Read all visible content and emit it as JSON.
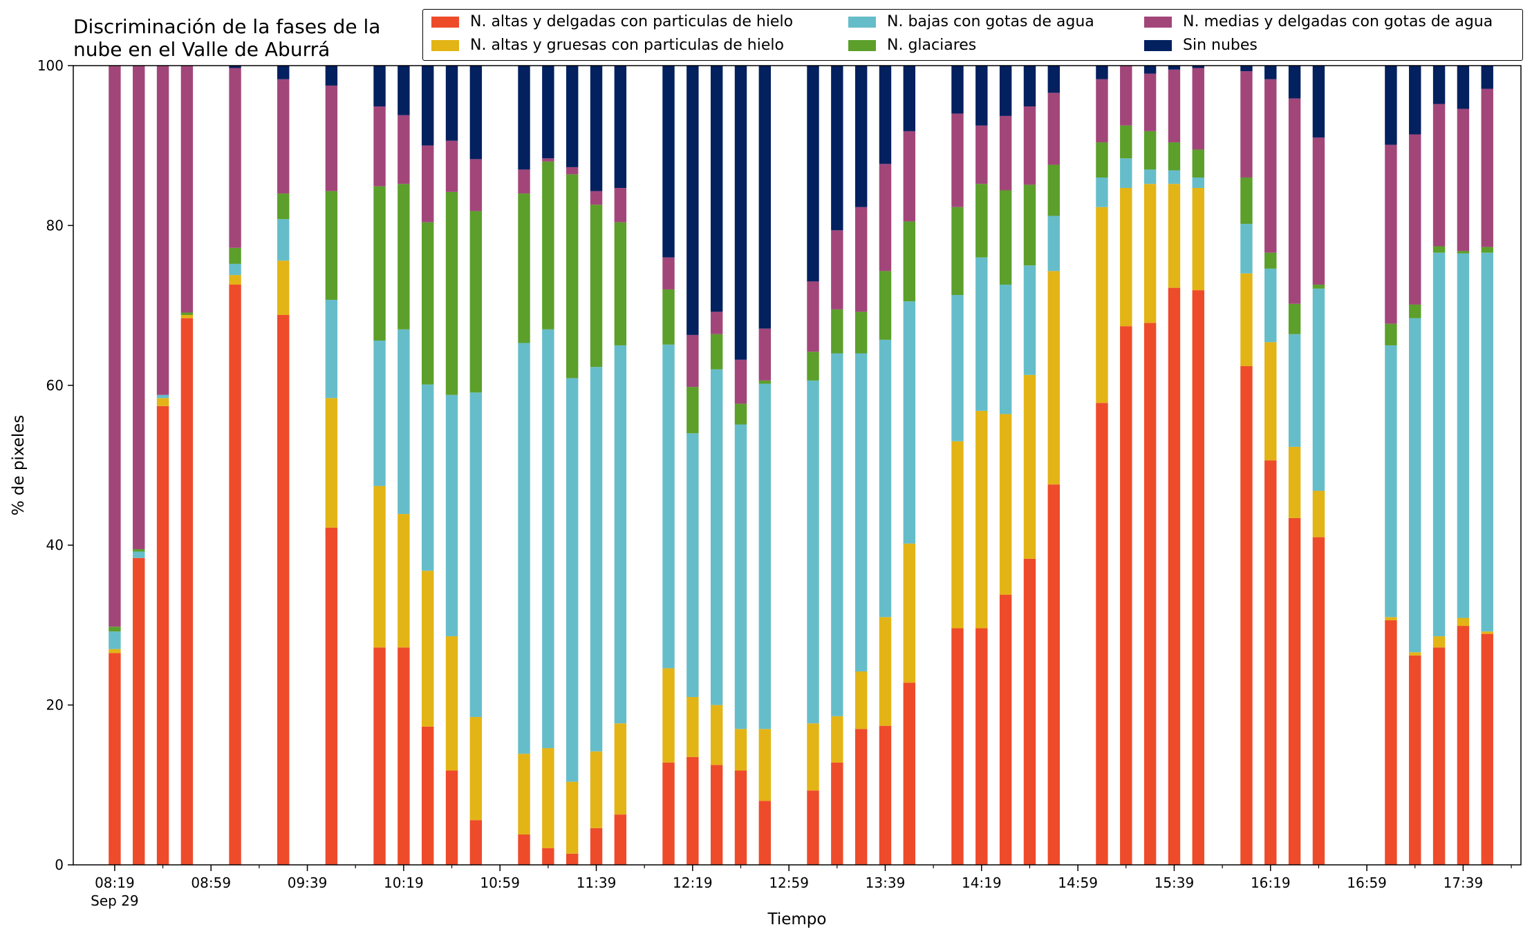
{
  "colors": {
    "thin_ice": "#ee4b2b",
    "thick_ice": "#e3b416",
    "low_water": "#66bdca",
    "glacier": "#5c9f2b",
    "mid_water": "#a2467a",
    "no_cloud": "#03205f"
  },
  "chart_data": {
    "type": "bar",
    "stacked": true,
    "title": "Discriminación de la fases de la\nnube en el Valle de Aburrá",
    "xlabel": "Tiempo",
    "ylabel": "% de pixeles",
    "ylim": [
      0,
      100
    ],
    "yticks": [
      "0",
      "20",
      "40",
      "60",
      "80",
      "100"
    ],
    "xlim_minutes": [
      8.03,
      18.05
    ],
    "xtick_labels": [
      {
        "time": "08:19",
        "sub": "Sep 29"
      },
      {
        "time": "08:59",
        "sub": ""
      },
      {
        "time": "09:39",
        "sub": ""
      },
      {
        "time": "10:19",
        "sub": ""
      },
      {
        "time": "10:59",
        "sub": ""
      },
      {
        "time": "11:39",
        "sub": ""
      },
      {
        "time": "12:19",
        "sub": ""
      },
      {
        "time": "12:59",
        "sub": ""
      },
      {
        "time": "13:39",
        "sub": ""
      },
      {
        "time": "14:19",
        "sub": ""
      },
      {
        "time": "14:59",
        "sub": ""
      },
      {
        "time": "15:39",
        "sub": ""
      },
      {
        "time": "16:19",
        "sub": ""
      },
      {
        "time": "16:59",
        "sub": ""
      },
      {
        "time": "17:39",
        "sub": ""
      }
    ],
    "legend_position": "top-right",
    "series": [
      {
        "name": "N. altas y delgadas con particulas de hielo",
        "key": "thin_ice"
      },
      {
        "name": "N. altas y gruesas con particulas de hielo",
        "key": "thick_ice"
      },
      {
        "name": "N. bajas con gotas de agua",
        "key": "low_water"
      },
      {
        "name": "N. glaciares",
        "key": "glacier"
      },
      {
        "name": "N. medias y delgadas con gotas de agua",
        "key": "mid_water"
      },
      {
        "name": "Sin nubes",
        "key": "no_cloud"
      }
    ],
    "x": [
      "08:19",
      "08:29",
      "08:39",
      "08:49",
      "09:09",
      "09:29",
      "09:49",
      "10:09",
      "10:19",
      "10:29",
      "10:39",
      "10:49",
      "11:09",
      "11:19",
      "11:29",
      "11:39",
      "11:49",
      "12:09",
      "12:19",
      "12:29",
      "12:39",
      "12:49",
      "13:09",
      "13:19",
      "13:29",
      "13:39",
      "13:49",
      "14:09",
      "14:19",
      "14:29",
      "14:39",
      "14:49",
      "15:09",
      "15:19",
      "15:29",
      "15:39",
      "15:49",
      "16:09",
      "16:19",
      "16:29",
      "16:39",
      "17:09",
      "17:19",
      "17:29",
      "17:39",
      "17:49"
    ],
    "values": [
      [
        26.5,
        0.5,
        2.2,
        0.6,
        70.2,
        0
      ],
      [
        38.4,
        0,
        0.8,
        0.3,
        60.5,
        0
      ],
      [
        57.4,
        1.0,
        0.4,
        0,
        41.2,
        0
      ],
      [
        68.4,
        0.4,
        0,
        0.3,
        30.9,
        0
      ],
      [
        72.6,
        1.2,
        1.4,
        2.0,
        22.5,
        0.3
      ],
      [
        68.8,
        6.8,
        5.2,
        3.2,
        14.3,
        1.7
      ],
      [
        42.2,
        16.2,
        12.3,
        13.6,
        13.2,
        2.5
      ],
      [
        27.2,
        20.2,
        18.2,
        19.3,
        10.0,
        5.1
      ],
      [
        27.2,
        16.7,
        23.1,
        18.2,
        8.6,
        6.2
      ],
      [
        17.3,
        19.5,
        23.3,
        20.3,
        9.6,
        10.0
      ],
      [
        11.8,
        16.8,
        30.2,
        25.4,
        6.4,
        9.4
      ],
      [
        5.6,
        12.9,
        40.6,
        22.7,
        6.5,
        11.7
      ],
      [
        3.8,
        10.1,
        51.4,
        18.7,
        3.0,
        13.0
      ],
      [
        2.1,
        12.5,
        52.4,
        21.0,
        0.4,
        11.6
      ],
      [
        1.4,
        9.0,
        50.5,
        25.5,
        0.9,
        12.7
      ],
      [
        4.6,
        9.6,
        48.1,
        20.3,
        1.7,
        15.7
      ],
      [
        6.3,
        11.4,
        47.3,
        15.4,
        4.3,
        15.3
      ],
      [
        12.8,
        11.8,
        40.5,
        6.9,
        4.0,
        24.0
      ],
      [
        13.5,
        7.5,
        33.0,
        5.8,
        6.5,
        33.7
      ],
      [
        12.5,
        7.5,
        42.0,
        4.4,
        2.8,
        30.8
      ],
      [
        11.8,
        5.2,
        38.1,
        2.6,
        5.5,
        36.8
      ],
      [
        8.0,
        9.0,
        43.2,
        0.4,
        6.5,
        32.9
      ],
      [
        9.3,
        8.4,
        42.9,
        3.6,
        8.8,
        27.0
      ],
      [
        12.8,
        5.8,
        45.4,
        5.5,
        9.9,
        20.6
      ],
      [
        17.0,
        7.2,
        39.8,
        5.2,
        13.1,
        17.7
      ],
      [
        17.4,
        13.6,
        34.7,
        8.6,
        13.4,
        12.3
      ],
      [
        22.8,
        17.4,
        30.3,
        10.0,
        11.3,
        8.2
      ],
      [
        29.6,
        23.4,
        18.3,
        11.0,
        11.7,
        6.0
      ],
      [
        29.6,
        27.2,
        19.2,
        9.2,
        7.3,
        7.5
      ],
      [
        33.8,
        22.6,
        16.2,
        11.8,
        9.3,
        6.3
      ],
      [
        38.3,
        23.0,
        13.7,
        10.1,
        9.8,
        5.1
      ],
      [
        47.6,
        26.7,
        6.9,
        6.4,
        9.0,
        3.4
      ],
      [
        57.8,
        24.5,
        3.7,
        4.4,
        7.9,
        1.7
      ],
      [
        67.4,
        17.3,
        3.7,
        4.1,
        7.5,
        0
      ],
      [
        67.8,
        17.4,
        1.8,
        4.8,
        7.2,
        1.0
      ],
      [
        72.2,
        13.0,
        1.7,
        3.5,
        9.1,
        0.5
      ],
      [
        71.9,
        12.8,
        1.3,
        3.5,
        10.2,
        0.3
      ],
      [
        62.4,
        11.6,
        6.2,
        5.8,
        13.3,
        0.7
      ],
      [
        50.6,
        14.8,
        9.2,
        2.0,
        21.7,
        1.7
      ],
      [
        43.4,
        8.9,
        14.1,
        3.8,
        25.7,
        4.1
      ],
      [
        41.0,
        5.8,
        25.3,
        0.5,
        18.4,
        9.0
      ],
      [
        30.6,
        0.4,
        34.0,
        2.7,
        22.4,
        9.9
      ],
      [
        26.2,
        0.4,
        41.8,
        1.7,
        21.3,
        8.6
      ],
      [
        27.2,
        1.4,
        48.0,
        0.8,
        17.8,
        4.8
      ],
      [
        29.9,
        1.0,
        45.6,
        0.3,
        17.8,
        5.4
      ],
      [
        28.9,
        0.3,
        47.4,
        0.7,
        19.8,
        2.9
      ]
    ]
  }
}
